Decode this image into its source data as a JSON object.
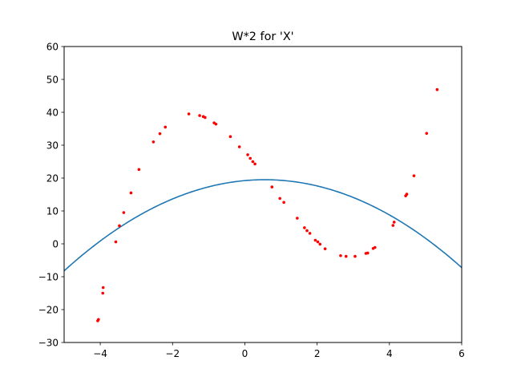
{
  "chart_data": {
    "type": "scatter",
    "title": "W*2 for 'X'",
    "xlabel": "",
    "ylabel": "",
    "xlim": [
      -5,
      6
    ],
    "ylim": [
      -30,
      60
    ],
    "x_ticks": [
      -4,
      -2,
      0,
      2,
      4,
      6
    ],
    "x_tick_labels": [
      "−4",
      "−2",
      "0",
      "2",
      "4",
      "6"
    ],
    "y_ticks": [
      -30,
      -20,
      -10,
      0,
      10,
      20,
      30,
      40,
      50,
      60
    ],
    "y_tick_labels": [
      "−30",
      "−20",
      "−10",
      "0",
      "10",
      "20",
      "30",
      "40",
      "50",
      "60"
    ],
    "grid": false,
    "series": [
      {
        "type": "scatter",
        "color": "#ff0000",
        "points": [
          [
            -4.07,
            -23.4
          ],
          [
            -4.05,
            -23.0
          ],
          [
            -3.93,
            -15.0
          ],
          [
            -3.92,
            -13.3
          ],
          [
            -3.57,
            0.6
          ],
          [
            -3.47,
            5.5
          ],
          [
            -3.35,
            9.5
          ],
          [
            -3.15,
            15.5
          ],
          [
            -2.93,
            22.6
          ],
          [
            -2.53,
            31.0
          ],
          [
            -2.35,
            33.5
          ],
          [
            -2.2,
            35.5
          ],
          [
            -1.55,
            39.5
          ],
          [
            -1.25,
            39.0
          ],
          [
            -1.15,
            38.7
          ],
          [
            -1.1,
            38.4
          ],
          [
            -0.85,
            36.8
          ],
          [
            -0.8,
            36.4
          ],
          [
            -0.4,
            32.6
          ],
          [
            -0.15,
            29.5
          ],
          [
            0.08,
            27.1
          ],
          [
            0.15,
            26.0
          ],
          [
            0.22,
            25.0
          ],
          [
            0.28,
            24.3
          ],
          [
            0.75,
            17.3
          ],
          [
            0.97,
            13.8
          ],
          [
            1.08,
            12.6
          ],
          [
            1.45,
            7.8
          ],
          [
            1.65,
            4.9
          ],
          [
            1.72,
            4.0
          ],
          [
            1.8,
            3.2
          ],
          [
            1.95,
            1.1
          ],
          [
            2.02,
            0.6
          ],
          [
            2.08,
            -0.1
          ],
          [
            2.22,
            -1.5
          ],
          [
            2.65,
            -3.6
          ],
          [
            2.8,
            -3.8
          ],
          [
            3.05,
            -3.8
          ],
          [
            3.35,
            -2.9
          ],
          [
            3.4,
            -2.8
          ],
          [
            3.55,
            -1.4
          ],
          [
            3.6,
            -1.1
          ],
          [
            4.1,
            5.6
          ],
          [
            4.13,
            6.6
          ],
          [
            4.45,
            14.6
          ],
          [
            4.48,
            15.1
          ],
          [
            4.68,
            20.7
          ],
          [
            5.03,
            33.6
          ],
          [
            5.32,
            46.9
          ]
        ]
      },
      {
        "type": "line",
        "color": "#1f77b4",
        "formula": "y = 19.5 - 0.9 * (x - 0.55)^2",
        "x_range": [
          -5,
          6
        ]
      }
    ]
  }
}
